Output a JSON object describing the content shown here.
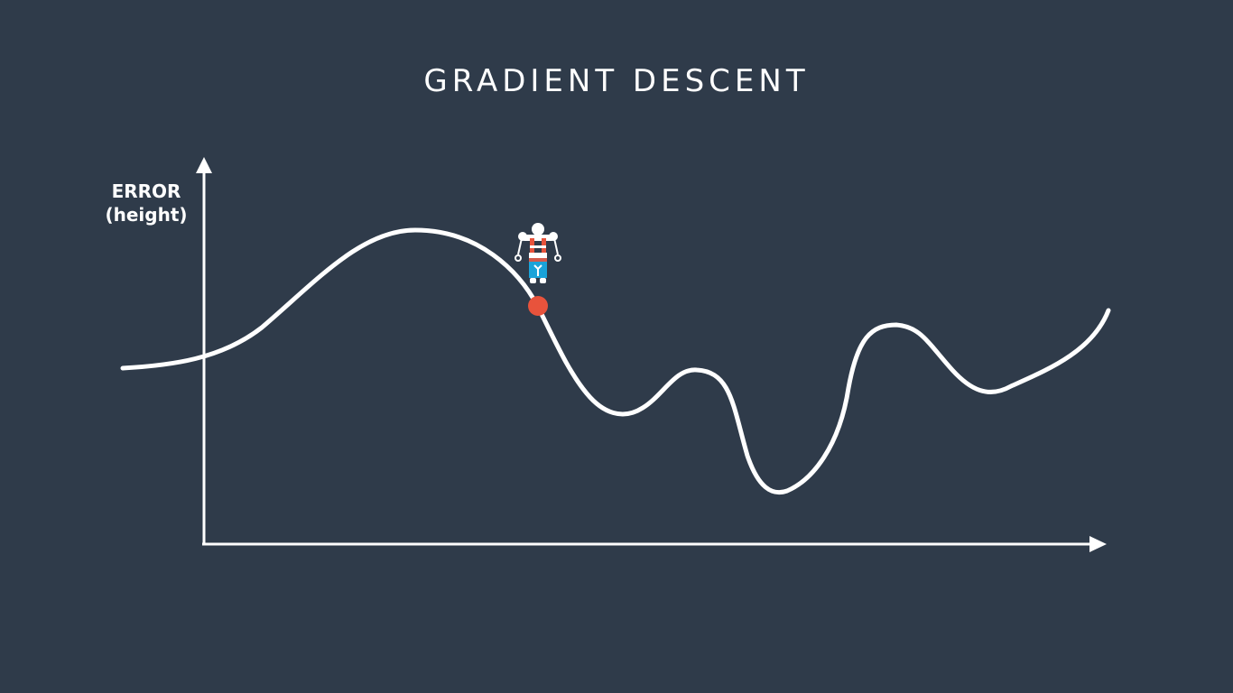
{
  "title": "GRADIENT DESCENT",
  "y_axis": {
    "label_line1": "ERROR",
    "label_line2": "(height)"
  },
  "colors": {
    "background": "#2f3b4a",
    "curve": "#ffffff",
    "marker": "#e8533c",
    "robot_body": "#1aa3d9",
    "robot_accent": "#e8533c"
  },
  "icons": {
    "robot": "robot-icon",
    "marker": "red-dot-marker"
  }
}
